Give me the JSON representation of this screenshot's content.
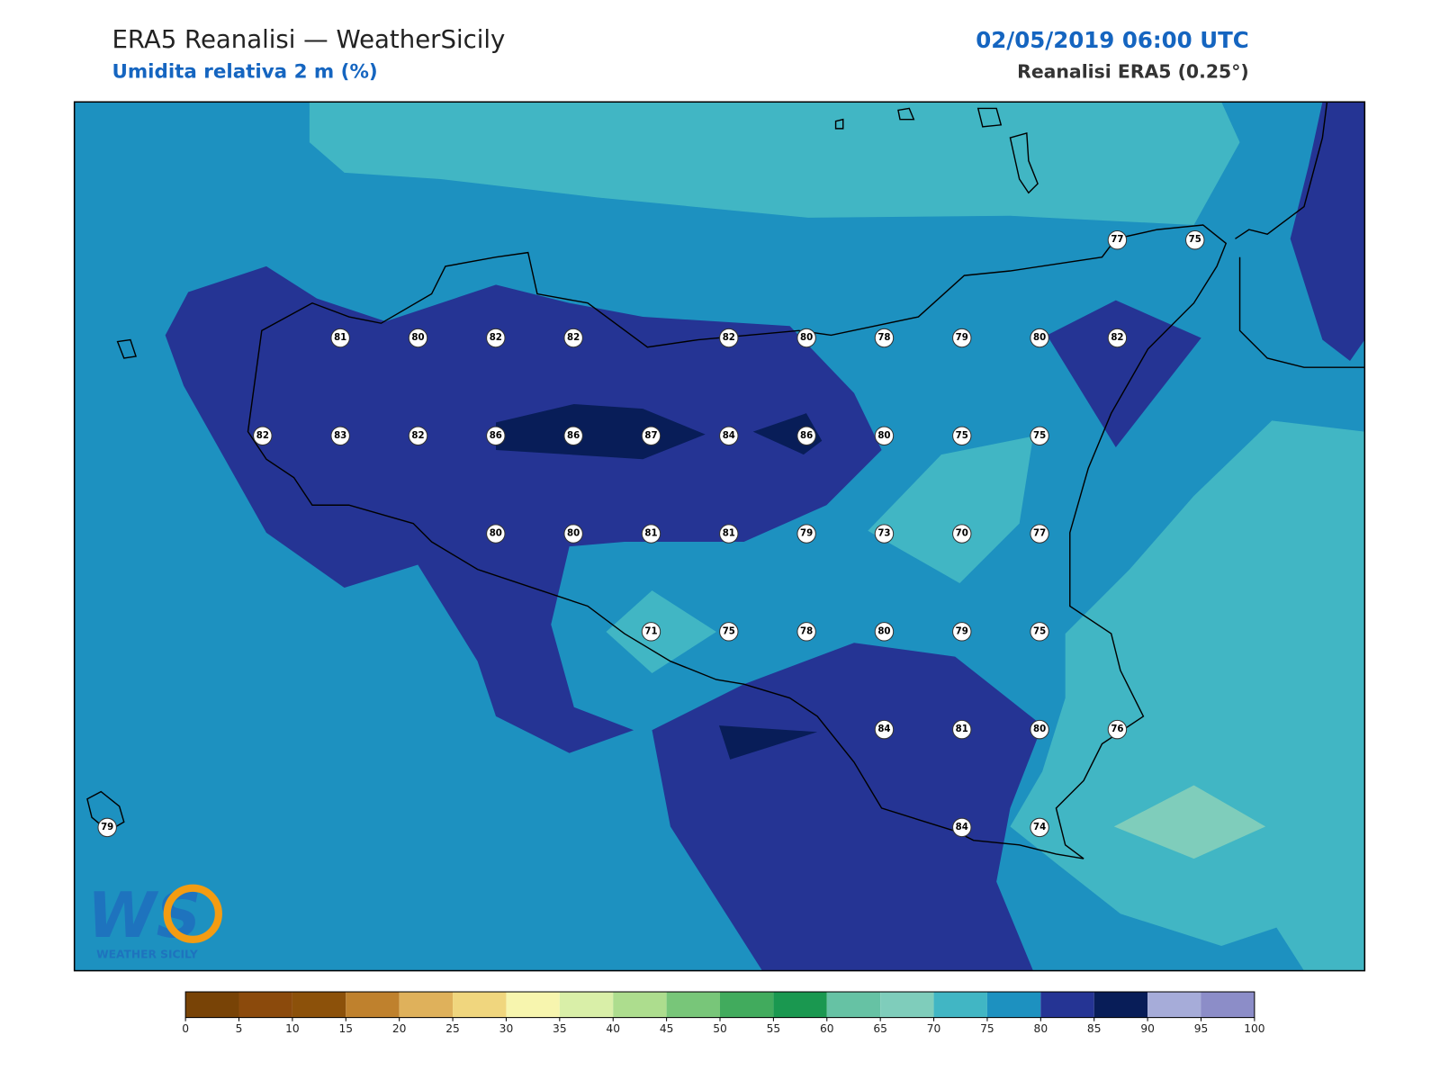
{
  "header": {
    "title": "ERA5 Reanalisi — WeatherSicily",
    "subtitle": "Umidita relativa 2 m (%)",
    "datetime": "02/05/2019 06:00 UTC",
    "source": "Reanalisi ERA5 (0.25°)"
  },
  "map": {
    "stations": [
      77,
      75,
      81,
      80,
      82,
      82,
      82,
      80,
      78,
      79,
      80,
      82,
      82,
      83,
      82,
      86,
      86,
      87,
      84,
      86,
      80,
      75,
      75,
      80,
      80,
      81,
      81,
      79,
      73,
      70,
      77,
      71,
      75,
      78,
      80,
      79,
      75,
      84,
      81,
      80,
      76,
      79,
      84,
      74
    ]
  },
  "logo": {
    "mark": "WS",
    "text": "WEATHER SICILY"
  },
  "colorbar": {
    "ticks": [
      0,
      5,
      10,
      15,
      20,
      25,
      30,
      35,
      40,
      45,
      50,
      55,
      60,
      65,
      70,
      75,
      80,
      85,
      90,
      95,
      100
    ],
    "colors": [
      "#784306",
      "#8b4a0c",
      "#8c510a",
      "#bf812d",
      "#dfb15b",
      "#f0d67e",
      "#f7f5ae",
      "#d9efa8",
      "#addd8e",
      "#78c679",
      "#41ab5d",
      "#1a9850",
      "#66c2a4",
      "#7fcdbb",
      "#41b6c4",
      "#1d91c0",
      "#253494",
      "#081d58",
      "#a6acd9",
      "#8c8dc8"
    ]
  }
}
